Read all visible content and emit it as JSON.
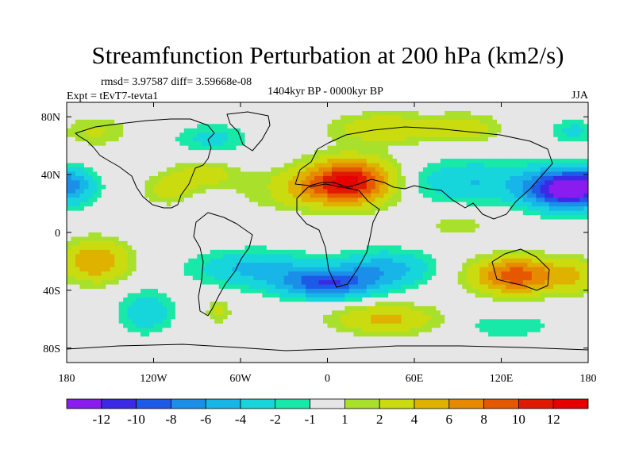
{
  "chart_data": {
    "type": "heatmap",
    "title": "Streamfunction Perturbation at 200 hPa (km2/s)",
    "left_note": "rmsd= 3.97587 diff= 3.59668e-08",
    "left_string": "Expt = tEvT7-tevta1",
    "center_string": "1404kyr BP - 0000kyr BP",
    "right_string": "JJA",
    "x_ticks": [
      {
        "value": -180,
        "label": "180"
      },
      {
        "value": -120,
        "label": "120W"
      },
      {
        "value": -60,
        "label": "60W"
      },
      {
        "value": 0,
        "label": "0"
      },
      {
        "value": 60,
        "label": "60E"
      },
      {
        "value": 120,
        "label": "120E"
      },
      {
        "value": 180,
        "label": "180"
      }
    ],
    "y_ticks": [
      {
        "value": 80,
        "label": "80N"
      },
      {
        "value": 40,
        "label": "40N"
      },
      {
        "value": 0,
        "label": "0"
      },
      {
        "value": -40,
        "label": "40S"
      },
      {
        "value": -80,
        "label": "80S"
      }
    ],
    "xlim": [
      -180,
      180
    ],
    "ylim": [
      -90,
      90
    ],
    "contour_levels": [
      -12,
      -10,
      -8,
      -6,
      -4,
      -2,
      -1,
      1,
      2,
      4,
      6,
      8,
      10,
      12
    ],
    "colorbar_labels": [
      "-12",
      "-10",
      "-8",
      "-6",
      "-4",
      "-2",
      "-1",
      "1",
      "2",
      "4",
      "6",
      "8",
      "10",
      "12"
    ],
    "colorbar_colors": [
      "#8a1cf0",
      "#3a2ae6",
      "#1e5ae8",
      "#1b8fe8",
      "#17b5e8",
      "#16d6dc",
      "#18e8a8",
      "#e6e6e6",
      "#a8e02c",
      "#cadc10",
      "#e0b200",
      "#e68a00",
      "#e65800",
      "#e01a00",
      "#e60000"
    ],
    "field_anomalies": [
      {
        "lon": 15,
        "lat": 35,
        "value": 12.5,
        "slon": 28,
        "slat": 15
      },
      {
        "lon": -25,
        "lat": 30,
        "value": 4.0,
        "slon": 30,
        "slat": 12
      },
      {
        "lon": 160,
        "lat": 30,
        "value": -12.0,
        "slon": 25,
        "slat": 13
      },
      {
        "lon": 100,
        "lat": 35,
        "value": -4.0,
        "slon": 40,
        "slat": 14
      },
      {
        "lon": -180,
        "lat": 32,
        "value": -7.5,
        "slon": 18,
        "slat": 12
      },
      {
        "lon": 180,
        "lat": 32,
        "value": -7.5,
        "slon": 18,
        "slat": 12
      },
      {
        "lon": -85,
        "lat": 40,
        "value": 3.5,
        "slon": 20,
        "slat": 9
      },
      {
        "lon": -110,
        "lat": 30,
        "value": 3.0,
        "slon": 16,
        "slat": 10
      },
      {
        "lon": -35,
        "lat": 30,
        "value": -1.5,
        "slon": 14,
        "slat": 8
      },
      {
        "lon": 40,
        "lat": 72,
        "value": 3.8,
        "slon": 35,
        "slat": 10
      },
      {
        "lon": 95,
        "lat": 72,
        "value": 2.8,
        "slon": 25,
        "slat": 10
      },
      {
        "lon": -80,
        "lat": 65,
        "value": -2.5,
        "slon": 25,
        "slat": 10
      },
      {
        "lon": -160,
        "lat": 70,
        "value": 2.2,
        "slon": 22,
        "slat": 10
      },
      {
        "lon": 170,
        "lat": 70,
        "value": -2.5,
        "slon": 15,
        "slat": 8
      },
      {
        "lon": 0,
        "lat": -35,
        "value": -9.5,
        "slon": 32,
        "slat": 10
      },
      {
        "lon": -50,
        "lat": -25,
        "value": -4.5,
        "slon": 40,
        "slat": 12
      },
      {
        "lon": 40,
        "lat": -25,
        "value": -5.0,
        "slon": 30,
        "slat": 12
      },
      {
        "lon": 130,
        "lat": -30,
        "value": 9.5,
        "slon": 28,
        "slat": 12
      },
      {
        "lon": 170,
        "lat": -30,
        "value": 3.5,
        "slon": 18,
        "slat": 12
      },
      {
        "lon": -160,
        "lat": -20,
        "value": 6.0,
        "slon": 22,
        "slat": 14
      },
      {
        "lon": -125,
        "lat": -55,
        "value": -3.5,
        "slon": 18,
        "slat": 14
      },
      {
        "lon": 40,
        "lat": -60,
        "value": 4.5,
        "slon": 35,
        "slat": 10
      },
      {
        "lon": -75,
        "lat": -55,
        "value": 2.5,
        "slon": 8,
        "slat": 8
      },
      {
        "lon": 125,
        "lat": -65,
        "value": -2.0,
        "slon": 30,
        "slat": 8
      },
      {
        "lon": 90,
        "lat": 5,
        "value": 1.5,
        "slon": 25,
        "slat": 10
      }
    ],
    "grid": false,
    "projection": "cylindrical-equidistant",
    "colorbar_position": "bottom"
  }
}
